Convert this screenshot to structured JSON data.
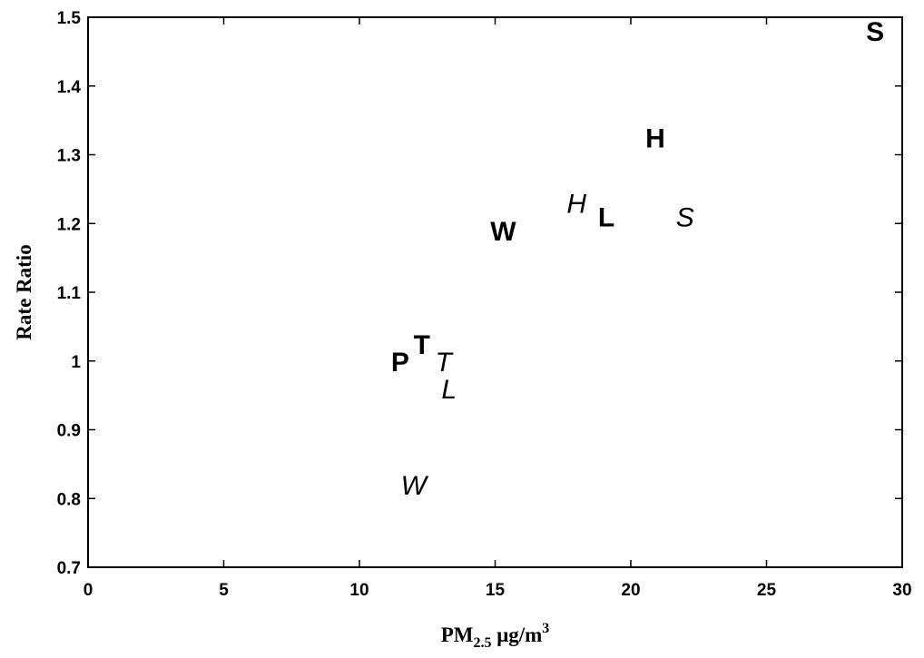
{
  "chart_data": {
    "type": "scatter",
    "xlabel": "PM",
    "xlabel_subscript": "2.5",
    "xlabel_unit": " μg/m",
    "xlabel_superscript": "3",
    "ylabel": "Rate Ratio",
    "xlim": [
      0,
      30
    ],
    "ylim": [
      0.7,
      1.5
    ],
    "xticks": [
      "0",
      "5",
      "10",
      "15",
      "20",
      "25",
      "30"
    ],
    "yticks": [
      "0.7",
      "0.8",
      "0.9",
      "1",
      "1.1",
      "1.2",
      "1.3",
      "1.4",
      "1.5"
    ],
    "grid": false,
    "points": [
      {
        "label": "S",
        "x": 29.0,
        "y": 1.48,
        "style": "bold"
      },
      {
        "label": "H",
        "x": 20.9,
        "y": 1.325,
        "style": "bold"
      },
      {
        "label": "H",
        "x": 18.0,
        "y": 1.23,
        "style": "italic"
      },
      {
        "label": "L",
        "x": 19.1,
        "y": 1.21,
        "style": "bold"
      },
      {
        "label": "S",
        "x": 22.0,
        "y": 1.21,
        "style": "italic"
      },
      {
        "label": "W",
        "x": 15.3,
        "y": 1.19,
        "style": "bold"
      },
      {
        "label": "P",
        "x": 11.5,
        "y": 1.0,
        "style": "bold"
      },
      {
        "label": "T",
        "x": 12.3,
        "y": 1.025,
        "style": "bold"
      },
      {
        "label": "T",
        "x": 13.1,
        "y": 1.0,
        "style": "italic"
      },
      {
        "label": "L",
        "x": 13.3,
        "y": 0.96,
        "style": "italic"
      },
      {
        "label": "W",
        "x": 12.0,
        "y": 0.82,
        "style": "italic"
      }
    ]
  }
}
